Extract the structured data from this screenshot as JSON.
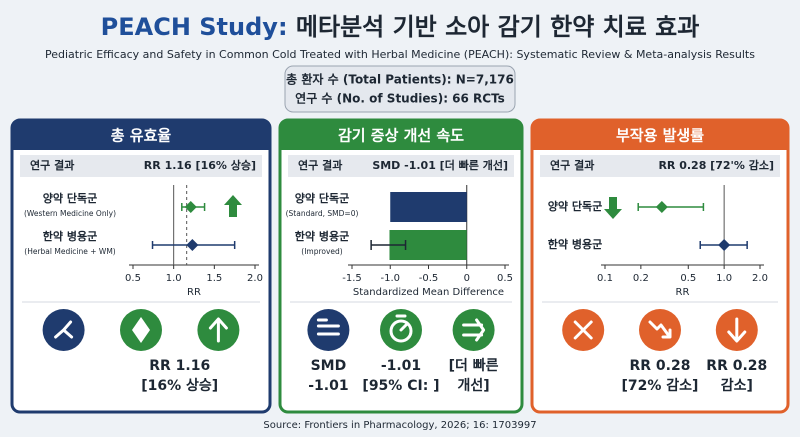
{
  "header": {
    "title_lead": "PEACH Study:",
    "title": "메타분석 기반 소아 감기 한약 치료 효과",
    "subtitle": "Pediatric Efficacy and Safety in Common Cold Treated with Herbal Medicine (PEACH): Systematic Review & Meta-analysis Results"
  },
  "summary": {
    "lines": [
      "총 환자 수 (Total Patients): N=7,176",
      "연구 수 (No. of Studies): 66 RCTs"
    ]
  },
  "chart_data": [
    {
      "type": "forest",
      "title": "총 유효율",
      "color": "#1f3b6e",
      "result_label": "연구 결과",
      "result_value": "RR 1.16 [16% 상승]",
      "categories": [
        "양약 단독군",
        "한약 병용군"
      ],
      "sublabels": [
        "(Western Medicine Only)",
        "(Herbal Medicine + WM)"
      ],
      "values": [
        1.21,
        1.23
      ],
      "ci_low": [
        1.1,
        0.74
      ],
      "ci_high": [
        1.38,
        1.75
      ],
      "colors": [
        "#2e8b3e",
        "#1f3b6e"
      ],
      "reference": 1,
      "pooled": 1.16,
      "log": false,
      "xlim": [
        0.5,
        2.0
      ],
      "xticks": [
        0.5,
        {
          "value": 1,
          "label": "1.0"
        },
        1.5,
        {
          "value": 2,
          "label": "2.0"
        }
      ],
      "xlabel": "RR",
      "trend": "up",
      "icons": [
        "nodes",
        "diamond",
        "up"
      ],
      "icon_colors": [
        "#1f3b6e",
        "#2e8b3e",
        "#2e8b3e"
      ],
      "cards": [
        [
          "RR 1.16",
          "[16% 상승]"
        ]
      ]
    },
    {
      "type": "bar",
      "title": "감기 증상 개선 속도",
      "color": "#2e8b3e",
      "result_label": "연구 결과",
      "result_value": "SMD -1.01 [더 빠른 개선]",
      "categories": [
        "양약 단독군",
        "한약 병용군"
      ],
      "sublabels": [
        "(Standard, SMD=0)",
        "(Improved)"
      ],
      "values": [
        -1.0,
        -1.01
      ],
      "ci_low": [
        null,
        -1.25
      ],
      "ci_high": [
        null,
        -0.8
      ],
      "colors": [
        "#1f3b6e",
        "#2e8b3e"
      ],
      "log": false,
      "xlim": [
        -1.5,
        0.5
      ],
      "xticks": [
        -1.5,
        {
          "value": -1,
          "label": "-1.0"
        },
        -0.5,
        0,
        0.5
      ],
      "xlabel": "Standardized Mean Difference",
      "icons": [
        "lines",
        "timer",
        "arrows"
      ],
      "icon_colors": [
        "#1f3b6e",
        "#2e8b3e",
        "#2e8b3e"
      ],
      "cards": [
        [
          "SMD",
          "-1.01"
        ],
        [
          "-1.01",
          "[95% CI: ]"
        ],
        [
          "[더 빠른",
          "개선]"
        ]
      ]
    },
    {
      "type": "forest",
      "title": "부작용 발생률",
      "color": "#e0612b",
      "result_label": "연구 결과",
      "result_value": "RR 0.28 [72'% 감소]",
      "categories": [
        "양약 단독군",
        "한약 병용군"
      ],
      "values": [
        0.3,
        1.0
      ],
      "ci_low": [
        0.19,
        0.63
      ],
      "ci_high": [
        0.67,
        1.56
      ],
      "colors": [
        "#2e8b3e",
        "#1f3b6e"
      ],
      "reference": 1,
      "log": true,
      "xlim": [
        0.1,
        2.0
      ],
      "xticks": [
        0.1,
        0.2,
        0.5,
        {
          "value": 1,
          "label": "1.0"
        },
        {
          "value": 2,
          "label": "2.0"
        }
      ],
      "xlabel": "RR",
      "trend": "down",
      "icons": [
        "x",
        "downtrend",
        "down"
      ],
      "icon_colors": [
        "#e0612b",
        "#e0612b",
        "#e0612b"
      ],
      "cards": [
        [
          "RR 0.28",
          "[72% 감소]"
        ],
        [
          "RR 0.28",
          "감소]"
        ]
      ]
    }
  ],
  "footer": {
    "source": "Source: Frontiers in Pharmacology, 2026; 16: 1703997"
  }
}
